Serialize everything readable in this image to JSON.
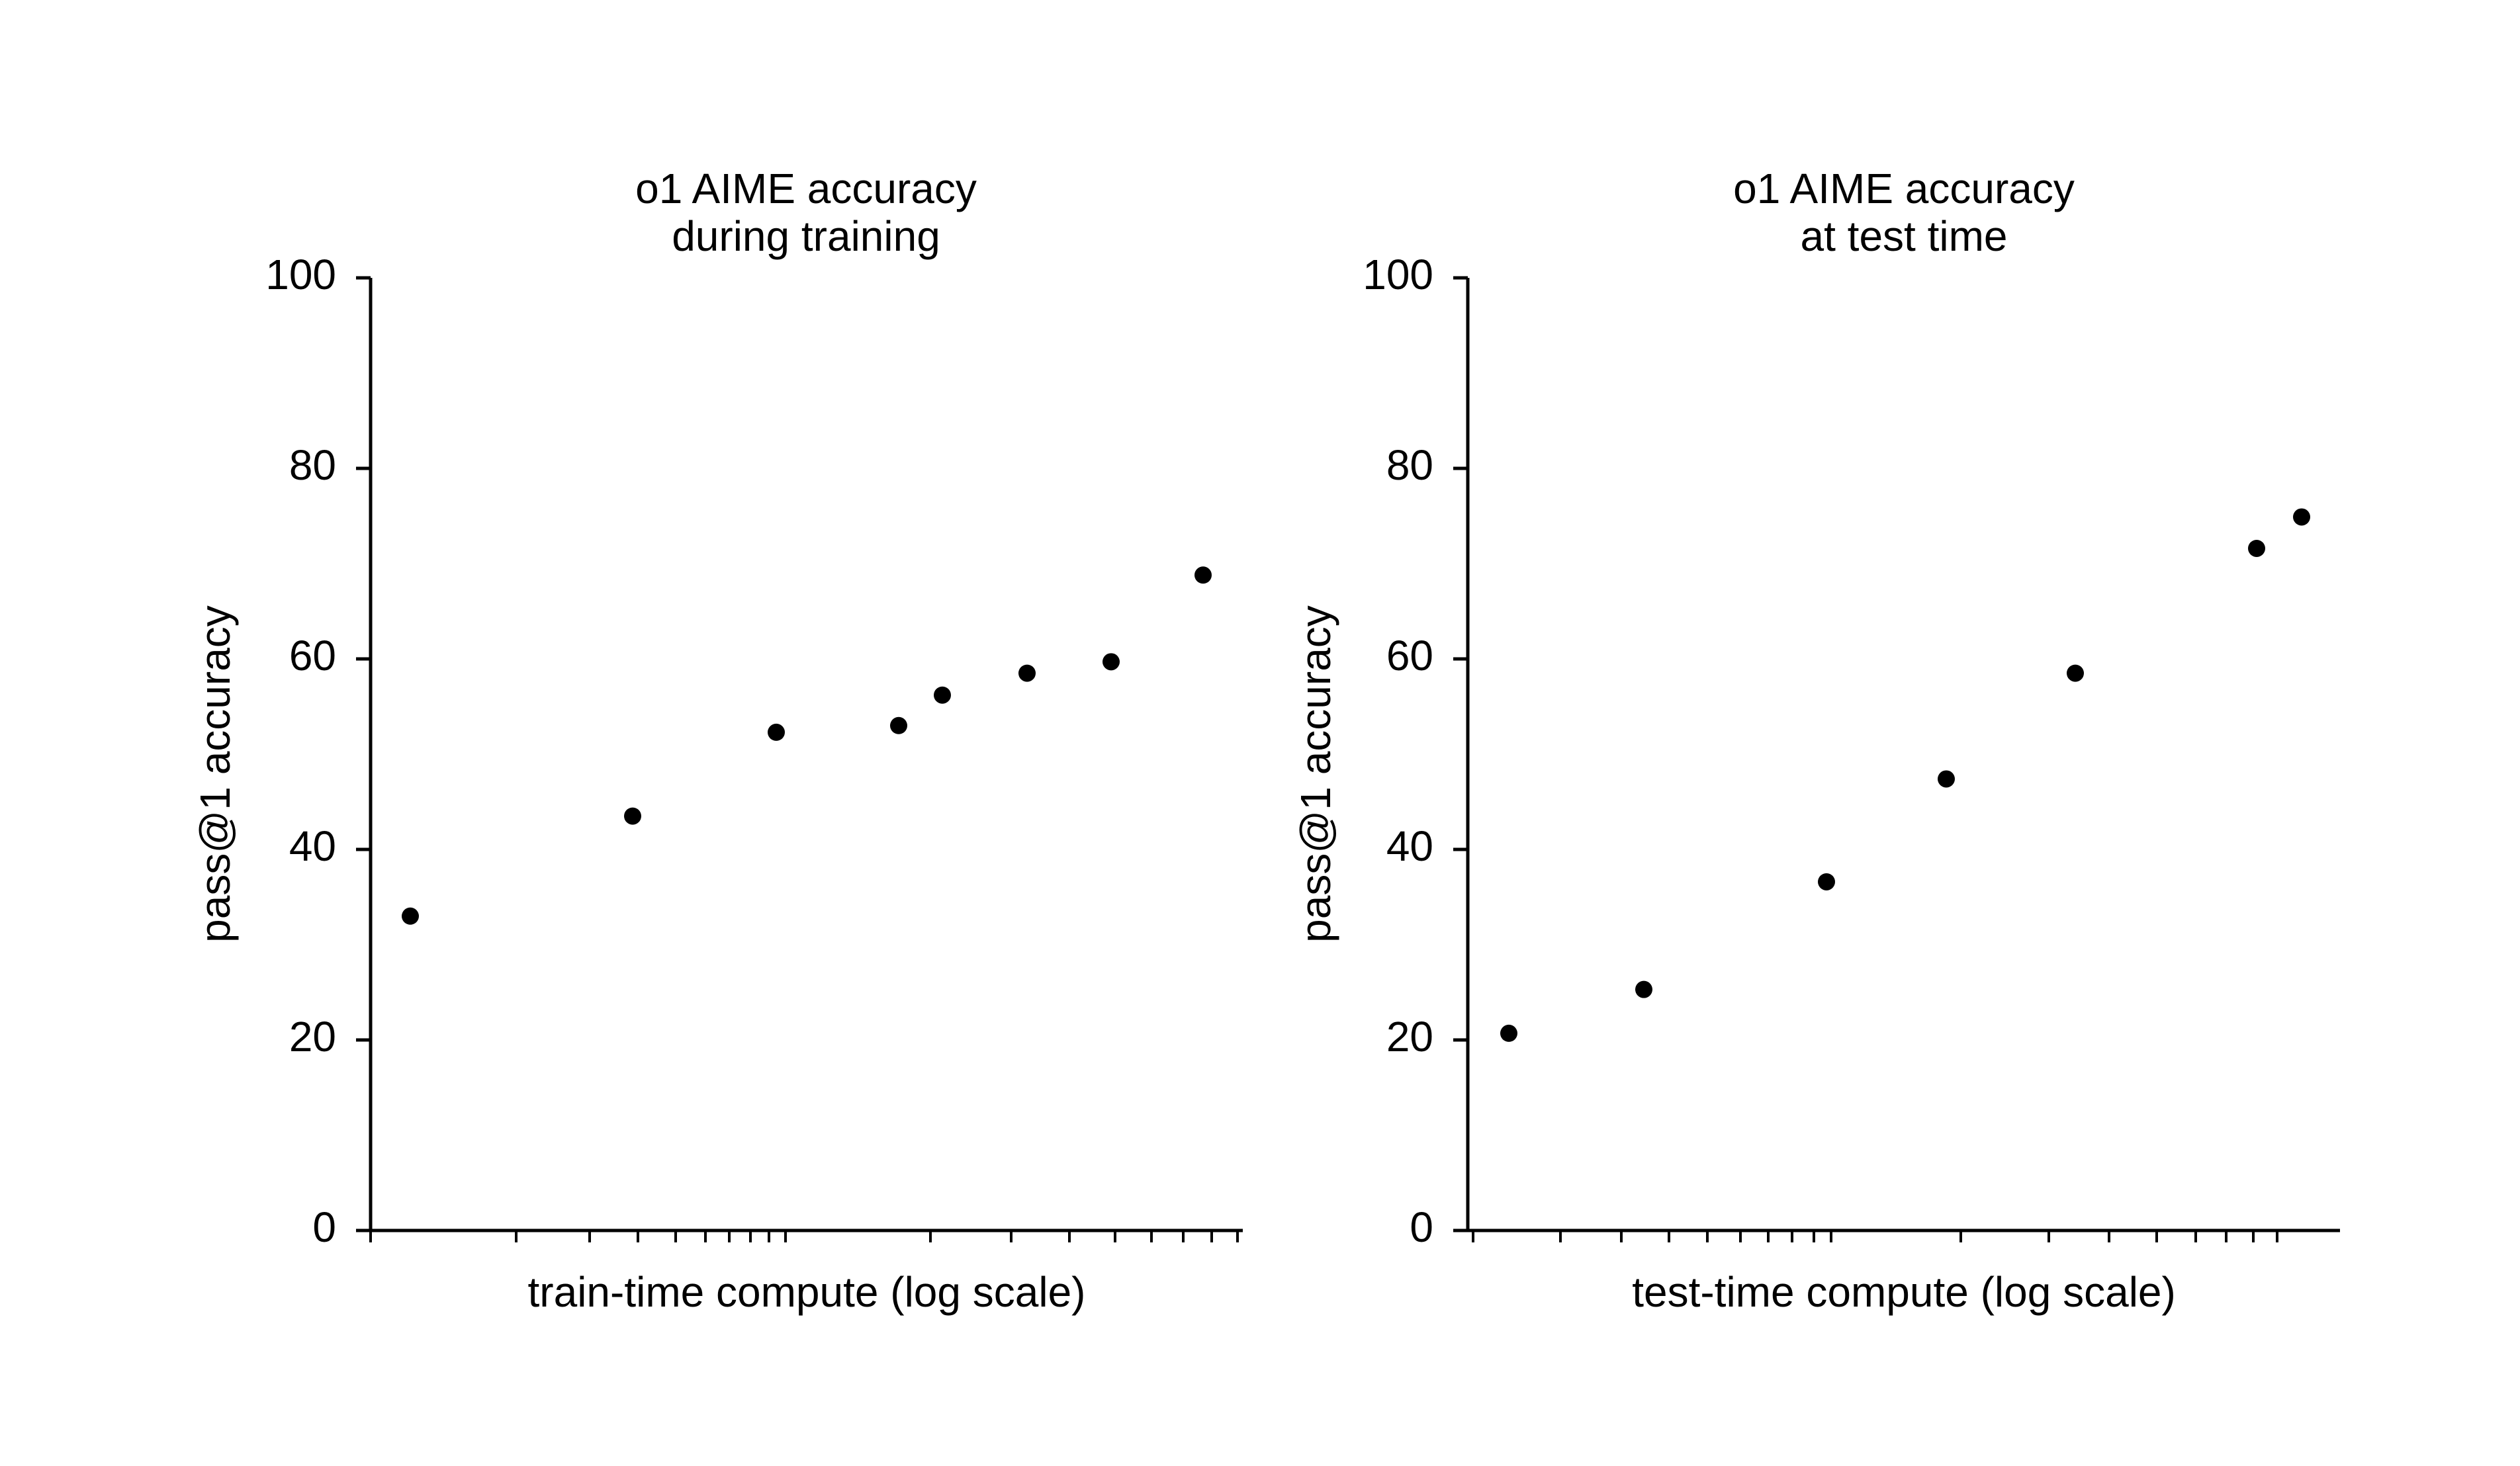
{
  "chart_data": [
    {
      "type": "scatter",
      "title": [
        "o1 AIME accuracy",
        "during training"
      ],
      "xlabel": "train-time compute (log scale)",
      "ylabel": "pass@1 accuracy",
      "xscale": "log",
      "x_tick_labels": "none",
      "ylim": [
        0,
        100
      ],
      "yticks": [
        0,
        20,
        40,
        60,
        80,
        100
      ],
      "grid": false,
      "legend": "none",
      "marker_color": "#000000",
      "series": [
        {
          "y": [
            33,
            43.5,
            52.3,
            53,
            56.2,
            58.5,
            59.7,
            68.8
          ]
        }
      ]
    },
    {
      "type": "scatter",
      "title": [
        "o1 AIME accuracy",
        "at test time"
      ],
      "xlabel": "test-time compute (log scale)",
      "ylabel": "pass@1 accuracy",
      "xscale": "log",
      "x_tick_labels": "none",
      "ylim": [
        0,
        100
      ],
      "yticks": [
        0,
        20,
        40,
        60,
        80,
        100
      ],
      "grid": false,
      "legend": "none",
      "marker_color": "#000000",
      "series": [
        {
          "y": [
            20.7,
            25.3,
            36.6,
            47.4,
            58.5,
            71.6,
            74.9
          ]
        }
      ]
    }
  ]
}
